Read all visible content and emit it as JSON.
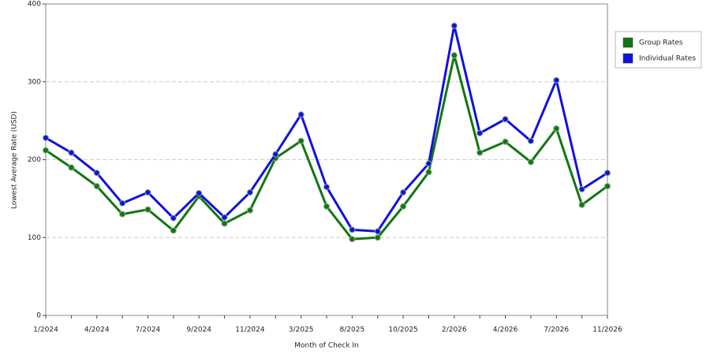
{
  "chart_data": {
    "type": "line",
    "x_label": "Month of Check In",
    "y_label": "Lowest Average Rate (USD)",
    "categories": [
      "1/2024",
      null,
      "4/2024",
      null,
      "7/2024",
      null,
      "9/2024",
      null,
      "11/2024",
      null,
      "3/2025",
      null,
      "8/2025",
      null,
      "10/2025",
      null,
      "2/2026",
      null,
      "4/2026",
      null,
      "7/2026",
      null,
      "11/2026"
    ],
    "series": [
      {
        "name": "Group Rates",
        "color": "#117711",
        "values": [
          212,
          190,
          166,
          130,
          136,
          109,
          153,
          118,
          135,
          202,
          224,
          140,
          98,
          100,
          140,
          184,
          334,
          209,
          223,
          197,
          240,
          142,
          166
        ]
      },
      {
        "name": "Individual Rates",
        "color": "#1111dd",
        "values": [
          228,
          209,
          183,
          144,
          158,
          125,
          157,
          126,
          158,
          207,
          258,
          165,
          110,
          108,
          158,
          195,
          372,
          234,
          252,
          224,
          302,
          162,
          183
        ]
      }
    ],
    "ylim": [
      0,
      400
    ],
    "yticks": [
      0,
      100,
      200,
      300,
      400
    ],
    "grid": true
  }
}
